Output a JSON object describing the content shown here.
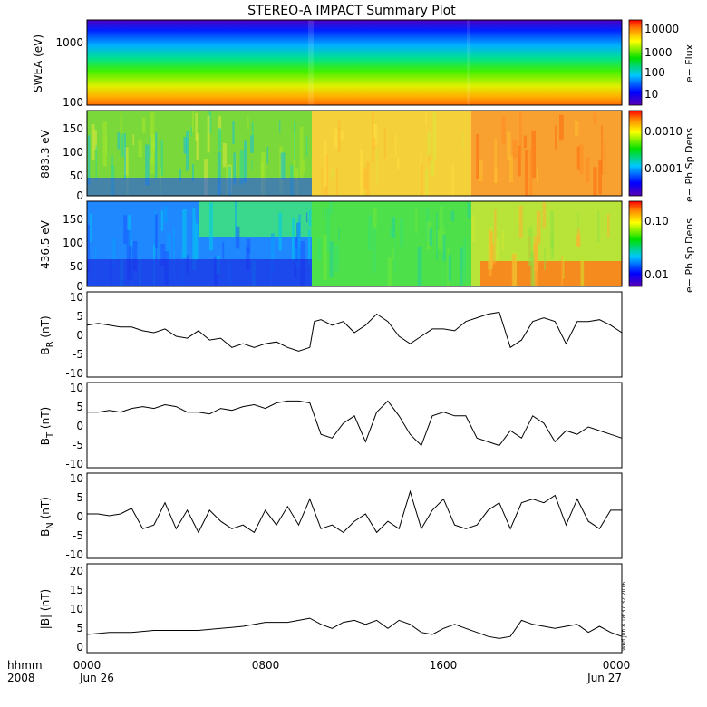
{
  "figure": {
    "title": "STEREO-A IMPACT Summary Plot",
    "time_label_top": "hhmm",
    "time_label_bottom": "2008",
    "stamp": "Wed Jun 8 18:37:32 2016"
  },
  "chart_data": [
    {
      "type": "heatmap",
      "panel": "swea",
      "ylabel": "SWEA (eV)",
      "y_scale": "log",
      "ylim": [
        95,
        1700
      ],
      "yticks": [
        "1000",
        "100"
      ],
      "colorbar": {
        "label": "e− Flux",
        "scale": "log",
        "range": [
          5,
          15000
        ],
        "ticks": [
          "10000",
          "1000",
          "100",
          "10"
        ]
      },
      "description_of_trend": "flux increases from top (low) to bottom (high), rising overall toward later times"
    },
    {
      "type": "heatmap",
      "panel": "pad883",
      "ylabel": "883.3 eV",
      "ylim": [
        0,
        180
      ],
      "yticks": [
        "150",
        "100",
        "50",
        "0"
      ],
      "colorbar": {
        "label": "e− Ph Sp Dens",
        "scale": "log",
        "range": [
          2e-05,
          0.0025
        ],
        "ticks": [
          "0.0010",
          "0.0001"
        ]
      }
    },
    {
      "type": "heatmap",
      "panel": "pad436",
      "ylabel": "436.5 eV",
      "ylim": [
        0,
        180
      ],
      "yticks": [
        "150",
        "100",
        "50",
        "0"
      ],
      "colorbar": {
        "label": "e− Ph Sp Dens",
        "scale": "log",
        "range": [
          0.005,
          0.18
        ],
        "ticks": [
          "0.10",
          "0.01"
        ]
      }
    },
    {
      "type": "line",
      "panel": "br",
      "ylabel_main": "B",
      "ylabel_sub": "R",
      "ylabel_tail": " (nT)",
      "ylim": [
        -12,
        11
      ],
      "yticks": [
        "10",
        "5",
        "0",
        "-5",
        "-10"
      ],
      "x": [
        0,
        0.5,
        1,
        1.5,
        2,
        2.5,
        3,
        3.5,
        4,
        4.5,
        5,
        5.5,
        6,
        6.5,
        7,
        7.5,
        8,
        8.5,
        9,
        9.5,
        10,
        10.2,
        10.5,
        11,
        11.5,
        12,
        12.5,
        13,
        13.5,
        14,
        14.5,
        15,
        15.5,
        16,
        16.5,
        17,
        17.5,
        18,
        18.5,
        19,
        19.5,
        20,
        20.5,
        21,
        21.5,
        22,
        22.5,
        23,
        23.5,
        24
      ],
      "y": [
        2,
        2.5,
        2,
        1.5,
        1.5,
        0.5,
        0,
        1,
        -1,
        -1.5,
        0.5,
        -2,
        -1.5,
        -4,
        -3,
        -4,
        -3,
        -2.5,
        -4,
        -5,
        -4,
        3,
        3.5,
        2,
        3,
        0,
        2,
        5,
        3,
        -1,
        -3,
        -1,
        1,
        1,
        0.5,
        3,
        4,
        5,
        5.5,
        -4,
        -2,
        3,
        4,
        3,
        -3,
        3,
        3,
        3.5,
        2,
        0
      ]
    },
    {
      "type": "line",
      "panel": "bt",
      "ylabel_main": "B",
      "ylabel_sub": "T",
      "ylabel_tail": " (nT)",
      "ylim": [
        -12,
        11
      ],
      "yticks": [
        "10",
        "5",
        "0",
        "-5",
        "-10"
      ],
      "x": [
        0,
        0.5,
        1,
        1.5,
        2,
        2.5,
        3,
        3.5,
        4,
        4.5,
        5,
        5.5,
        6,
        6.5,
        7,
        7.5,
        8,
        8.5,
        9,
        9.5,
        10,
        10.5,
        11,
        11.5,
        12,
        12.5,
        13,
        13.5,
        14,
        14.5,
        15,
        15.5,
        16,
        16.5,
        17,
        17.5,
        18,
        18.5,
        19,
        19.5,
        20,
        20.5,
        21,
        21.5,
        22,
        22.5,
        23,
        23.5,
        24
      ],
      "y": [
        3,
        3,
        3.5,
        3,
        4,
        4.5,
        4,
        5,
        4.5,
        3,
        3,
        2.5,
        4,
        3.5,
        4.5,
        5,
        4,
        5.5,
        6,
        6,
        5.5,
        -3,
        -4,
        0,
        2,
        -5,
        3,
        6,
        2,
        -3,
        -6,
        2,
        3,
        2,
        2,
        -4,
        -5,
        -6,
        -2,
        -4,
        2,
        0,
        -5,
        -2,
        -3,
        -1,
        -2,
        -3,
        -4
      ]
    },
    {
      "type": "line",
      "panel": "bn",
      "ylabel_main": "B",
      "ylabel_sub": "N",
      "ylabel_tail": " (nT)",
      "ylim": [
        -12,
        11
      ],
      "yticks": [
        "10",
        "5",
        "0",
        "-5",
        "-10"
      ],
      "x": [
        0,
        0.5,
        1,
        1.5,
        2,
        2.5,
        3,
        3.5,
        4,
        4.5,
        5,
        5.5,
        6,
        6.5,
        7,
        7.5,
        8,
        8.5,
        9,
        9.5,
        10,
        10.5,
        11,
        11.5,
        12,
        12.5,
        13,
        13.5,
        14,
        14.5,
        15,
        15.5,
        16,
        16.5,
        17,
        17.5,
        18,
        18.5,
        19,
        19.5,
        20,
        20.5,
        21,
        21.5,
        22,
        22.5,
        23,
        23.5,
        24
      ],
      "y": [
        0,
        0,
        -0.5,
        0,
        1.5,
        -4,
        -3,
        3,
        -4,
        1,
        -5,
        1,
        -2,
        -4,
        -3,
        -5,
        1,
        -3,
        2,
        -3,
        4,
        -4,
        -3,
        -5,
        -2,
        0,
        -5,
        -2,
        -4,
        6,
        -4,
        1,
        4,
        -3,
        -4,
        -3,
        1,
        3,
        -4,
        3,
        4,
        3,
        5,
        -3,
        4,
        -2,
        -4,
        1,
        1
      ]
    },
    {
      "type": "line",
      "panel": "bmag",
      "ylabel_main": "|B| (nT)",
      "ylim": [
        -1,
        21
      ],
      "yticks": [
        "20",
        "15",
        "10",
        "5",
        "0"
      ],
      "x": [
        0,
        1,
        2,
        3,
        4,
        5,
        6,
        7,
        8,
        9,
        9.5,
        10,
        10.5,
        11,
        11.5,
        12,
        12.5,
        13,
        13.5,
        14,
        14.5,
        15,
        15.5,
        16,
        16.5,
        17,
        17.5,
        18,
        18.5,
        19,
        19.5,
        20,
        20.5,
        21,
        21.5,
        22,
        22.5,
        23,
        23.5,
        24
      ],
      "y": [
        3.5,
        4,
        4,
        4.5,
        4.5,
        4.5,
        5,
        5.5,
        6.5,
        6.5,
        7,
        7.5,
        6,
        5,
        6.5,
        7,
        6,
        7,
        5,
        7,
        6,
        4,
        3.5,
        5,
        6,
        5,
        4,
        3,
        2.5,
        3,
        7,
        6,
        5.5,
        5,
        5.5,
        6,
        4,
        5.5,
        4,
        3
      ]
    }
  ],
  "xaxis": {
    "ticks": [
      "0000",
      "0800",
      "1600",
      "0000"
    ],
    "dates": [
      "Jun 26",
      "Jun 27"
    ]
  }
}
